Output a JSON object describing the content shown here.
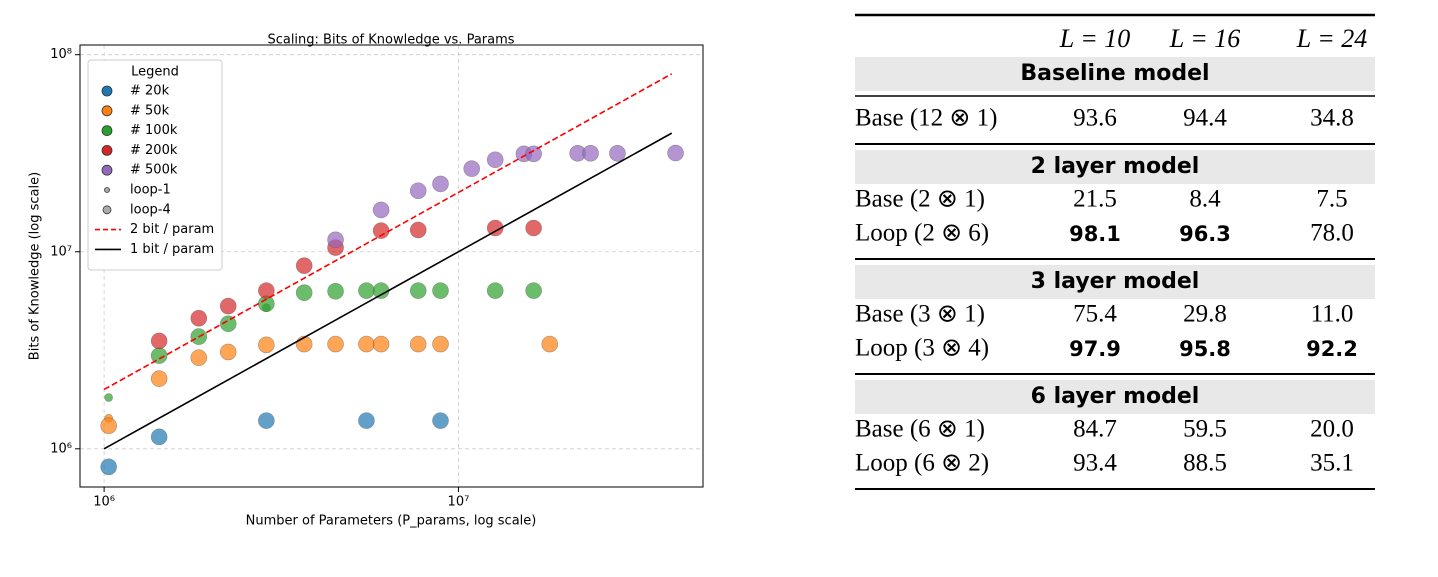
{
  "chart_data": {
    "type": "scatter",
    "title": "Scaling: Bits of Knowledge vs. Params",
    "x_label": "Number of Parameters (P_params, log scale)",
    "y_label": "Bits of Knowledge (log scale)",
    "log_x": true,
    "log_y": true,
    "grid": true,
    "xlim": [
      855000,
      49000000
    ],
    "ylim": [
      640000,
      112000000
    ],
    "xticks": [
      {
        "value": 1000000,
        "label": "10⁶"
      },
      {
        "value": 10000000,
        "label": "10⁷"
      }
    ],
    "yticks": [
      {
        "value": 1000000,
        "label": "10⁶"
      },
      {
        "value": 10000000,
        "label": "10⁷"
      },
      {
        "value": 100000000,
        "label": "10⁸"
      }
    ],
    "legend": {
      "title": "Legend",
      "loc": "upper left"
    },
    "markers": [
      {
        "name": "loop-1",
        "loop": 1
      },
      {
        "name": "loop-4",
        "loop": 4
      }
    ],
    "series": [
      {
        "name": "# 20k",
        "color": "#1f77b4",
        "x": [
          1030000,
          1430000,
          2870000,
          5500000,
          8900000
        ],
        "values": [
          810000,
          1150000,
          1390000,
          1390000,
          1390000
        ],
        "loops": [
          4,
          4,
          4,
          4,
          4
        ]
      },
      {
        "name": "# 50k",
        "color": "#ff7f0e",
        "x": [
          1030000,
          1030000,
          1430000,
          1850000,
          2240000,
          2870000,
          3670000,
          4500000,
          5500000,
          6050000,
          7700000,
          8900000,
          18100000
        ],
        "values": [
          1430000,
          1310000,
          2270000,
          2900000,
          3100000,
          3370000,
          3400000,
          3400000,
          3400000,
          3400000,
          3400000,
          3400000,
          3400000
        ],
        "loops": [
          1,
          4,
          4,
          4,
          4,
          4,
          4,
          4,
          4,
          4,
          4,
          4,
          4
        ]
      },
      {
        "name": "# 100k",
        "color": "#2ca02c",
        "x": [
          1030000,
          1430000,
          1850000,
          2240000,
          2870000,
          2870000,
          3670000,
          4500000,
          5500000,
          6050000,
          7700000,
          8900000,
          12700000,
          16300000
        ],
        "values": [
          1820000,
          2970000,
          3710000,
          4310000,
          5200000,
          5450000,
          6200000,
          6300000,
          6350000,
          6350000,
          6350000,
          6350000,
          6350000,
          6350000
        ],
        "loops": [
          1,
          4,
          4,
          4,
          1,
          4,
          4,
          4,
          4,
          4,
          4,
          4,
          4,
          4
        ]
      },
      {
        "name": "# 200k",
        "color": "#d62728",
        "x": [
          1430000,
          1850000,
          2240000,
          2870000,
          3670000,
          4500000,
          6050000,
          7700000,
          12700000,
          16300000
        ],
        "values": [
          3530000,
          4600000,
          5300000,
          6350000,
          8500000,
          10500000,
          12800000,
          12900000,
          13200000,
          13200000
        ],
        "loops": [
          4,
          4,
          4,
          4,
          4,
          4,
          4,
          4,
          4,
          4
        ]
      },
      {
        "name": "# 500k",
        "color": "#9467bd",
        "x": [
          4500000,
          6050000,
          7700000,
          8900000,
          10900000,
          12700000,
          15300000,
          16300000,
          21700000,
          23600000,
          28100000,
          41000000
        ],
        "values": [
          11500000,
          16300000,
          20400000,
          22100000,
          26400000,
          29300000,
          31400000,
          31400000,
          31600000,
          31600000,
          31600000,
          31700000
        ],
        "loops": [
          4,
          4,
          4,
          4,
          4,
          4,
          4,
          4,
          4,
          4,
          4,
          4
        ]
      },
      {
        "name": "2 bit / param",
        "color": "#ff0000",
        "line": "dashed",
        "x": [
          1000000,
          40000000
        ],
        "values": [
          2000000,
          80000000
        ]
      },
      {
        "name": "1 bit / param",
        "color": "#000000",
        "line": "solid",
        "x": [
          1000000,
          40000000
        ],
        "values": [
          1000000,
          40000000
        ]
      }
    ]
  },
  "table": {
    "columns": [
      "L = 10",
      "L = 16",
      "L = 24"
    ],
    "sections": [
      {
        "title": "Baseline model",
        "rows": [
          {
            "label": "Base (12 ⊗ 1)",
            "values": [
              "93.6",
              "94.4",
              "34.8"
            ],
            "bold": [
              false,
              false,
              false
            ]
          }
        ]
      },
      {
        "title": "2 layer model",
        "rows": [
          {
            "label": "Base (2 ⊗ 1)",
            "values": [
              "21.5",
              "8.4",
              "7.5"
            ],
            "bold": [
              false,
              false,
              false
            ]
          },
          {
            "label": "Loop (2 ⊗ 6)",
            "values": [
              "98.1",
              "96.3",
              "78.0"
            ],
            "bold": [
              true,
              true,
              false
            ]
          }
        ]
      },
      {
        "title": "3 layer model",
        "rows": [
          {
            "label": "Base (3 ⊗ 1)",
            "values": [
              "75.4",
              "29.8",
              "11.0"
            ],
            "bold": [
              false,
              false,
              false
            ]
          },
          {
            "label": "Loop (3 ⊗ 4)",
            "values": [
              "97.9",
              "95.8",
              "92.2"
            ],
            "bold": [
              true,
              true,
              true
            ]
          }
        ]
      },
      {
        "title": "6 layer model",
        "rows": [
          {
            "label": "Base (6 ⊗ 1)",
            "values": [
              "84.7",
              "59.5",
              "20.0"
            ],
            "bold": [
              false,
              false,
              false
            ]
          },
          {
            "label": "Loop (6 ⊗ 2)",
            "values": [
              "93.4",
              "88.5",
              "35.1"
            ],
            "bold": [
              false,
              false,
              false
            ]
          }
        ]
      }
    ]
  }
}
